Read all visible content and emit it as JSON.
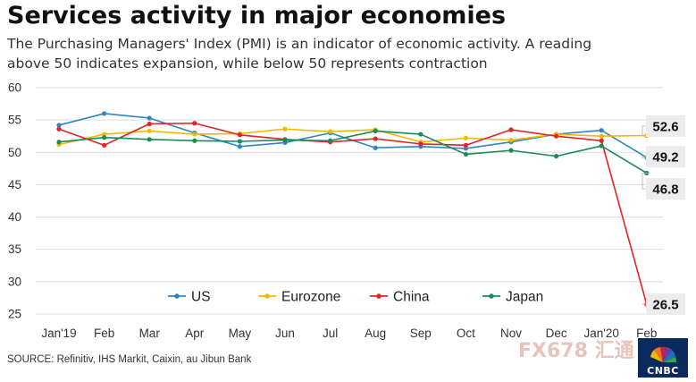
{
  "title": "Services activity in major economies",
  "subtitle": "The Purchasing Managers' Index (PMI) is an indicator of economic activity. A reading above 50 indicates expansion, while below 50 represents contraction",
  "source": "SOURCE: Refinitiv, IHS Markit, Caixin, au Jibun Bank",
  "watermark": "FX678 汇通",
  "logo": {
    "text": "CNBC",
    "icon": "cnbc-peacock-icon"
  },
  "chart_data": {
    "type": "line",
    "title": "Services activity in major economies",
    "xlabel": "",
    "ylabel": "",
    "categories": [
      "Jan'19",
      "Feb",
      "Mar",
      "Apr",
      "May",
      "Jun",
      "Jul",
      "Aug",
      "Sep",
      "Oct",
      "Nov",
      "Dec",
      "Jan'20",
      "Feb"
    ],
    "ylim": [
      25,
      60
    ],
    "yticks": [
      25,
      30,
      35,
      40,
      45,
      50,
      55,
      60
    ],
    "grid": "horizontal",
    "legend_position": "bottom-center",
    "series": [
      {
        "name": "US",
        "color": "#2e86c1",
        "values": [
          54.2,
          56.0,
          55.3,
          53.0,
          50.9,
          51.5,
          53.0,
          50.7,
          50.9,
          50.6,
          51.6,
          52.8,
          53.4,
          49.2
        ]
      },
      {
        "name": "Eurozone",
        "color": "#f5b800",
        "values": [
          51.2,
          52.8,
          53.3,
          52.8,
          52.9,
          53.6,
          53.2,
          53.5,
          51.6,
          52.2,
          51.9,
          52.8,
          52.5,
          52.6
        ]
      },
      {
        "name": "China",
        "color": "#e02424",
        "values": [
          53.6,
          51.1,
          54.4,
          54.5,
          52.7,
          52.0,
          51.6,
          52.1,
          51.3,
          51.1,
          53.5,
          52.5,
          51.8,
          26.5
        ]
      },
      {
        "name": "Japan",
        "color": "#1a8a5a",
        "values": [
          51.6,
          52.3,
          52.0,
          51.8,
          51.7,
          51.9,
          51.8,
          53.3,
          52.8,
          49.7,
          50.3,
          49.4,
          51.0,
          46.8
        ]
      }
    ],
    "end_labels": [
      {
        "series": "Eurozone",
        "text": "52.6"
      },
      {
        "series": "US",
        "text": "49.2"
      },
      {
        "series": "Japan",
        "text": "46.8"
      },
      {
        "series": "China",
        "text": "26.5"
      }
    ]
  }
}
